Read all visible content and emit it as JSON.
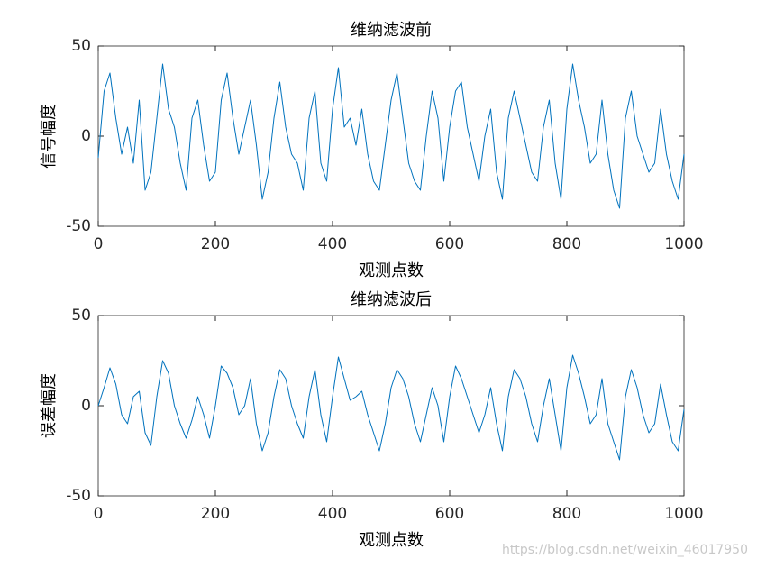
{
  "chart_data": [
    {
      "type": "line",
      "title": "维纳滤波前",
      "x_label": "观测点数",
      "y_label": "信号幅度",
      "color": "#0072bd",
      "x": [
        0,
        10,
        20,
        30,
        40,
        50,
        60,
        70,
        80,
        90,
        100,
        110,
        120,
        130,
        140,
        150,
        160,
        170,
        180,
        190,
        200,
        210,
        220,
        230,
        240,
        250,
        260,
        270,
        280,
        290,
        300,
        310,
        320,
        330,
        340,
        350,
        360,
        370,
        380,
        390,
        400,
        410,
        420,
        430,
        440,
        450,
        460,
        470,
        480,
        490,
        500,
        510,
        520,
        530,
        540,
        550,
        560,
        570,
        580,
        590,
        600,
        610,
        620,
        630,
        640,
        650,
        660,
        670,
        680,
        690,
        700,
        710,
        720,
        730,
        740,
        750,
        760,
        770,
        780,
        790,
        800,
        810,
        820,
        830,
        840,
        850,
        860,
        870,
        880,
        890,
        900,
        910,
        920,
        930,
        940,
        950,
        960,
        970,
        980,
        990,
        1000
      ],
      "values": [
        -12,
        25,
        35,
        10,
        -10,
        5,
        -15,
        20,
        -30,
        -20,
        10,
        40,
        15,
        5,
        -15,
        -30,
        10,
        20,
        -5,
        -25,
        -20,
        20,
        35,
        10,
        -10,
        5,
        20,
        -5,
        -35,
        -20,
        10,
        30,
        5,
        -10,
        -15,
        -30,
        10,
        25,
        -15,
        -25,
        15,
        38,
        5,
        10,
        -5,
        15,
        -10,
        -25,
        -30,
        -5,
        20,
        35,
        10,
        -15,
        -25,
        -30,
        0,
        25,
        10,
        -25,
        5,
        25,
        30,
        5,
        -10,
        -25,
        0,
        15,
        -20,
        -35,
        10,
        25,
        10,
        -5,
        -20,
        -25,
        5,
        20,
        -15,
        -35,
        15,
        40,
        20,
        5,
        -15,
        -10,
        20,
        -10,
        -30,
        -40,
        10,
        25,
        0,
        -10,
        -20,
        -15,
        15,
        -10,
        -25,
        -35,
        -10
      ],
      "xlim": [
        0,
        1000
      ],
      "xticks": [
        0,
        200,
        400,
        600,
        800,
        1000
      ],
      "ylim": [
        -50,
        50
      ],
      "yticks": [
        -50,
        0,
        50
      ]
    },
    {
      "type": "line",
      "title": "维纳滤波后",
      "x_label": "观测点数",
      "y_label": "误差幅度",
      "color": "#0072bd",
      "x": [
        0,
        10,
        20,
        30,
        40,
        50,
        60,
        70,
        80,
        90,
        100,
        110,
        120,
        130,
        140,
        150,
        160,
        170,
        180,
        190,
        200,
        210,
        220,
        230,
        240,
        250,
        260,
        270,
        280,
        290,
        300,
        310,
        320,
        330,
        340,
        350,
        360,
        370,
        380,
        390,
        400,
        410,
        420,
        430,
        440,
        450,
        460,
        470,
        480,
        490,
        500,
        510,
        520,
        530,
        540,
        550,
        560,
        570,
        580,
        590,
        600,
        610,
        620,
        630,
        640,
        650,
        660,
        670,
        680,
        690,
        700,
        710,
        720,
        730,
        740,
        750,
        760,
        770,
        780,
        790,
        800,
        810,
        820,
        830,
        840,
        850,
        860,
        870,
        880,
        890,
        900,
        910,
        920,
        930,
        940,
        950,
        960,
        970,
        980,
        990,
        1000
      ],
      "values": [
        0,
        10,
        21,
        12,
        -5,
        -10,
        5,
        8,
        -15,
        -22,
        5,
        25,
        18,
        0,
        -10,
        -18,
        -8,
        5,
        -5,
        -18,
        0,
        22,
        18,
        10,
        -5,
        0,
        15,
        -10,
        -25,
        -15,
        5,
        20,
        15,
        0,
        -10,
        -18,
        5,
        20,
        -5,
        -20,
        5,
        27,
        15,
        3,
        5,
        8,
        -5,
        -15,
        -25,
        -10,
        10,
        20,
        15,
        5,
        -10,
        -20,
        -5,
        10,
        0,
        -20,
        5,
        22,
        15,
        5,
        -5,
        -15,
        -5,
        10,
        -10,
        -25,
        5,
        20,
        15,
        5,
        -10,
        -20,
        0,
        15,
        -5,
        -25,
        10,
        28,
        18,
        5,
        -10,
        -5,
        15,
        -10,
        -20,
        -30,
        5,
        20,
        10,
        -5,
        -15,
        -10,
        12,
        -5,
        -20,
        -25,
        -2
      ],
      "xlim": [
        0,
        1000
      ],
      "xticks": [
        0,
        200,
        400,
        600,
        800,
        1000
      ],
      "ylim": [
        -50,
        50
      ],
      "yticks": [
        -50,
        0,
        50
      ]
    }
  ],
  "watermark": "https://blog.csdn.net/weixin_46017950"
}
